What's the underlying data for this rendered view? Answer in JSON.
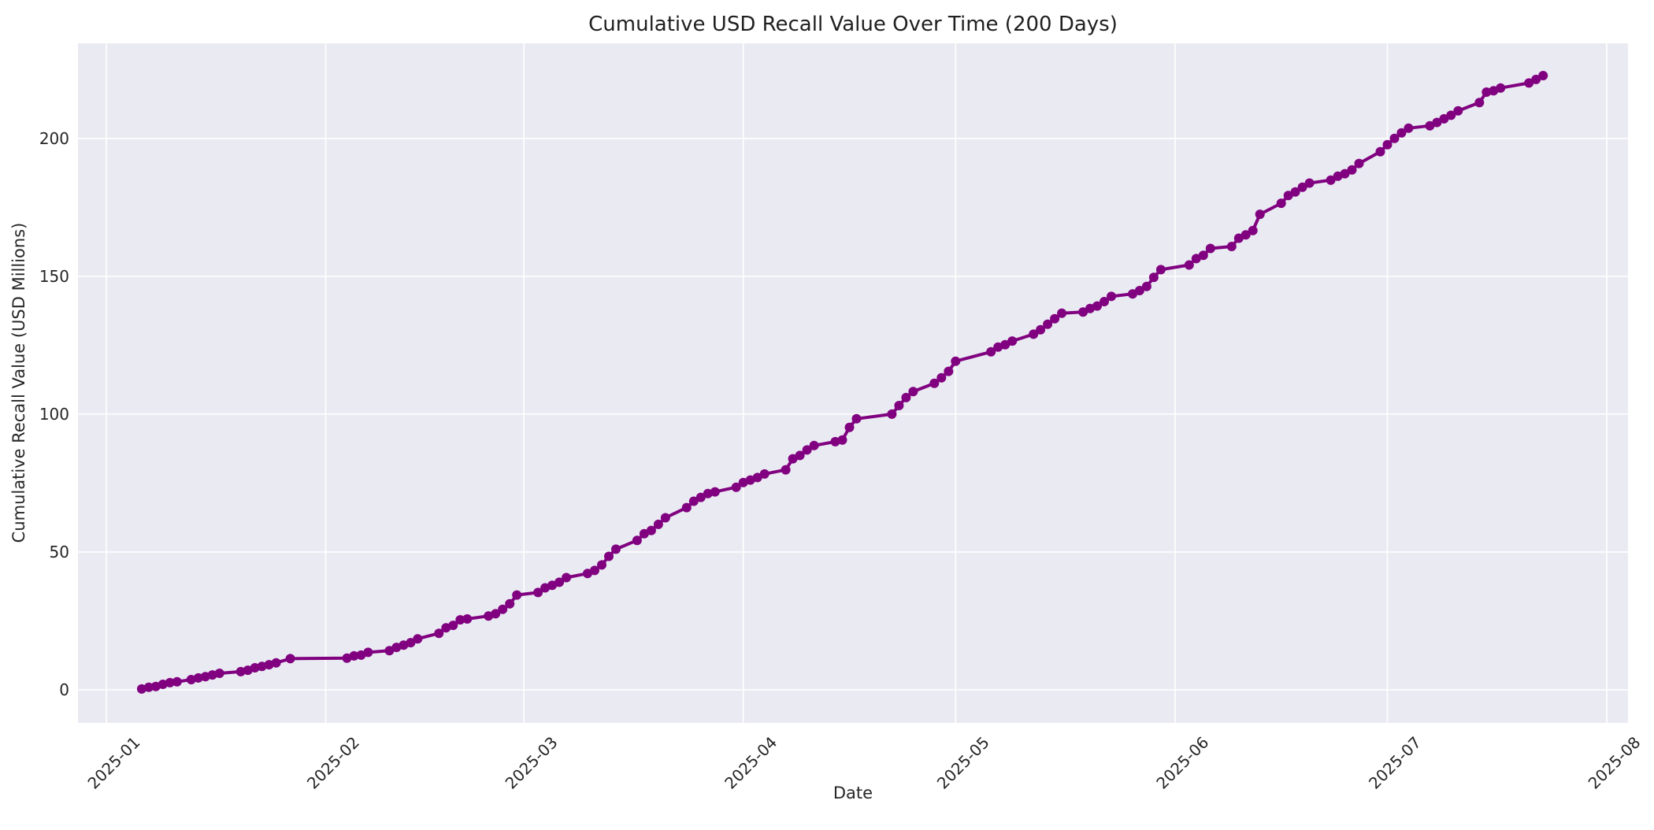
{
  "figure": {
    "background_color": "#ffffff"
  },
  "chart_data": {
    "type": "line",
    "title": "Cumulative USD Recall Value Over Time (200 Days)",
    "xlabel": "Date",
    "ylabel": "Cumulative Recall Value (USD Millions)",
    "legend": "none",
    "grid": true,
    "x_range": [
      "2024-12-28",
      "2025-08-04"
    ],
    "y_range": [
      -12,
      234.5
    ],
    "x_ticks": [
      {
        "date": "2025-01-01",
        "label": "2025-01"
      },
      {
        "date": "2025-02-01",
        "label": "2025-02"
      },
      {
        "date": "2025-03-01",
        "label": "2025-03"
      },
      {
        "date": "2025-04-01",
        "label": "2025-04"
      },
      {
        "date": "2025-05-01",
        "label": "2025-05"
      },
      {
        "date": "2025-06-01",
        "label": "2025-06"
      },
      {
        "date": "2025-07-01",
        "label": "2025-07"
      },
      {
        "date": "2025-08-01",
        "label": "2025-08"
      }
    ],
    "y_ticks": [
      0,
      50,
      100,
      150,
      200
    ],
    "style": {
      "plot_background": "#eaeaf2",
      "grid_color": "#ffffff",
      "line_color": "#800080",
      "marker_color": "#800080",
      "line_width": 4,
      "marker_radius": 6,
      "text_color": "#262626"
    },
    "series": [
      {
        "name": "Cumulative Recall Value",
        "marker": "circle",
        "points": [
          [
            "2025-01-06",
            0.3
          ],
          [
            "2025-01-07",
            0.9
          ],
          [
            "2025-01-08",
            1.2
          ],
          [
            "2025-01-09",
            2.0
          ],
          [
            "2025-01-10",
            2.6
          ],
          [
            "2025-01-11",
            2.9
          ],
          [
            "2025-01-13",
            3.7
          ],
          [
            "2025-01-14",
            4.3
          ],
          [
            "2025-01-15",
            4.8
          ],
          [
            "2025-01-16",
            5.4
          ],
          [
            "2025-01-17",
            6.0
          ],
          [
            "2025-01-20",
            6.6
          ],
          [
            "2025-01-21",
            7.1
          ],
          [
            "2025-01-22",
            8.0
          ],
          [
            "2025-01-23",
            8.5
          ],
          [
            "2025-01-24",
            9.1
          ],
          [
            "2025-01-25",
            9.8
          ],
          [
            "2025-01-27",
            11.3
          ],
          [
            "2025-02-04",
            11.5
          ],
          [
            "2025-02-05",
            12.3
          ],
          [
            "2025-02-06",
            12.6
          ],
          [
            "2025-02-07",
            13.6
          ],
          [
            "2025-02-10",
            14.2
          ],
          [
            "2025-02-11",
            15.4
          ],
          [
            "2025-02-12",
            16.2
          ],
          [
            "2025-02-13",
            17.1
          ],
          [
            "2025-02-14",
            18.5
          ],
          [
            "2025-02-17",
            20.5
          ],
          [
            "2025-02-18",
            22.5
          ],
          [
            "2025-02-19",
            23.4
          ],
          [
            "2025-02-20",
            25.4
          ],
          [
            "2025-02-21",
            25.7
          ],
          [
            "2025-02-24",
            26.8
          ],
          [
            "2025-02-25",
            27.6
          ],
          [
            "2025-02-26",
            29.2
          ],
          [
            "2025-02-27",
            31.2
          ],
          [
            "2025-02-28",
            34.4
          ],
          [
            "2025-03-03",
            35.3
          ],
          [
            "2025-03-04",
            37.0
          ],
          [
            "2025-03-05",
            37.9
          ],
          [
            "2025-03-06",
            39.0
          ],
          [
            "2025-03-07",
            40.7
          ],
          [
            "2025-03-10",
            42.2
          ],
          [
            "2025-03-11",
            43.3
          ],
          [
            "2025-03-12",
            45.3
          ],
          [
            "2025-03-13",
            48.4
          ],
          [
            "2025-03-14",
            51.0
          ],
          [
            "2025-03-17",
            54.2
          ],
          [
            "2025-03-18",
            56.6
          ],
          [
            "2025-03-19",
            57.8
          ],
          [
            "2025-03-20",
            60.0
          ],
          [
            "2025-03-21",
            62.4
          ],
          [
            "2025-03-24",
            66.1
          ],
          [
            "2025-03-25",
            68.4
          ],
          [
            "2025-03-26",
            69.8
          ],
          [
            "2025-03-27",
            71.2
          ],
          [
            "2025-03-28",
            71.8
          ],
          [
            "2025-03-31",
            73.5
          ],
          [
            "2025-04-01",
            75.2
          ],
          [
            "2025-04-02",
            76.1
          ],
          [
            "2025-04-03",
            77.0
          ],
          [
            "2025-04-04",
            78.3
          ],
          [
            "2025-04-07",
            79.8
          ],
          [
            "2025-04-08",
            83.8
          ],
          [
            "2025-04-09",
            85.0
          ],
          [
            "2025-04-10",
            87.0
          ],
          [
            "2025-04-11",
            88.6
          ],
          [
            "2025-04-14",
            90.0
          ],
          [
            "2025-04-15",
            90.6
          ],
          [
            "2025-04-16",
            95.2
          ],
          [
            "2025-04-17",
            98.3
          ],
          [
            "2025-04-22",
            100.0
          ],
          [
            "2025-04-23",
            103.1
          ],
          [
            "2025-04-24",
            106.0
          ],
          [
            "2025-04-25",
            108.2
          ],
          [
            "2025-04-28",
            111.2
          ],
          [
            "2025-04-29",
            113.2
          ],
          [
            "2025-04-30",
            115.5
          ],
          [
            "2025-05-01",
            119.2
          ],
          [
            "2025-05-06",
            122.6
          ],
          [
            "2025-05-07",
            124.3
          ],
          [
            "2025-05-08",
            125.2
          ],
          [
            "2025-05-09",
            126.5
          ],
          [
            "2025-05-12",
            129.0
          ],
          [
            "2025-05-13",
            130.6
          ],
          [
            "2025-05-14",
            132.6
          ],
          [
            "2025-05-15",
            134.6
          ],
          [
            "2025-05-16",
            136.6
          ],
          [
            "2025-05-19",
            137.0
          ],
          [
            "2025-05-20",
            138.3
          ],
          [
            "2025-05-21",
            139.2
          ],
          [
            "2025-05-22",
            140.8
          ],
          [
            "2025-05-23",
            142.7
          ],
          [
            "2025-05-26",
            143.6
          ],
          [
            "2025-05-27",
            144.8
          ],
          [
            "2025-05-28",
            146.3
          ],
          [
            "2025-05-29",
            149.6
          ],
          [
            "2025-05-30",
            152.4
          ],
          [
            "2025-06-03",
            154.1
          ],
          [
            "2025-06-04",
            156.4
          ],
          [
            "2025-06-05",
            157.6
          ],
          [
            "2025-06-06",
            160.1
          ],
          [
            "2025-06-09",
            160.8
          ],
          [
            "2025-06-10",
            163.8
          ],
          [
            "2025-06-11",
            165.0
          ],
          [
            "2025-06-12",
            166.6
          ],
          [
            "2025-06-13",
            172.5
          ],
          [
            "2025-06-16",
            176.5
          ],
          [
            "2025-06-17",
            179.3
          ],
          [
            "2025-06-18",
            180.6
          ],
          [
            "2025-06-19",
            182.3
          ],
          [
            "2025-06-20",
            183.8
          ],
          [
            "2025-06-23",
            184.9
          ],
          [
            "2025-06-24",
            186.3
          ],
          [
            "2025-06-25",
            187.2
          ],
          [
            "2025-06-26",
            188.6
          ],
          [
            "2025-06-27",
            190.9
          ],
          [
            "2025-06-30",
            195.2
          ],
          [
            "2025-07-01",
            197.7
          ],
          [
            "2025-07-02",
            200.0
          ],
          [
            "2025-07-03",
            202.0
          ],
          [
            "2025-07-04",
            203.7
          ],
          [
            "2025-07-07",
            204.6
          ],
          [
            "2025-07-08",
            205.8
          ],
          [
            "2025-07-09",
            207.1
          ],
          [
            "2025-07-10",
            208.4
          ],
          [
            "2025-07-11",
            210.0
          ],
          [
            "2025-07-14",
            213.0
          ],
          [
            "2025-07-15",
            216.8
          ],
          [
            "2025-07-16",
            217.3
          ],
          [
            "2025-07-17",
            218.3
          ],
          [
            "2025-07-21",
            220.1
          ],
          [
            "2025-07-22",
            221.4
          ],
          [
            "2025-07-23",
            222.8
          ]
        ]
      }
    ]
  }
}
